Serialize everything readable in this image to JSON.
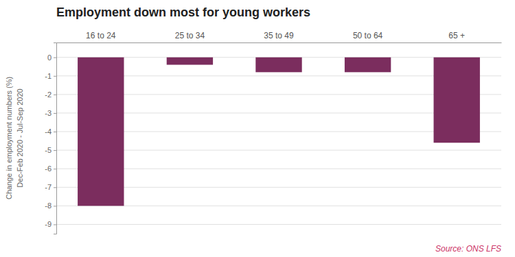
{
  "chart_data": {
    "type": "bar",
    "title": "Employment down most for young workers",
    "categories": [
      "16 to 24",
      "25 to 34",
      "35 to 49",
      "50 to 64",
      "65 +"
    ],
    "values": [
      -8.0,
      -0.4,
      -0.8,
      -0.8,
      -4.6
    ],
    "color": "#7b2d5e",
    "ylabel": [
      "Change in employment numbers (%)",
      "Dec-Feb 2020 - Jul-Sep 2020"
    ],
    "ylim": [
      -9.5,
      0.8
    ],
    "yticks": [
      0,
      -1,
      -2,
      -3,
      -4,
      -5,
      -6,
      -7,
      -8,
      -9
    ],
    "grid": true,
    "annotations": [
      {
        "text": "Source: ONS LFS",
        "color": "#cc3366"
      }
    ]
  }
}
